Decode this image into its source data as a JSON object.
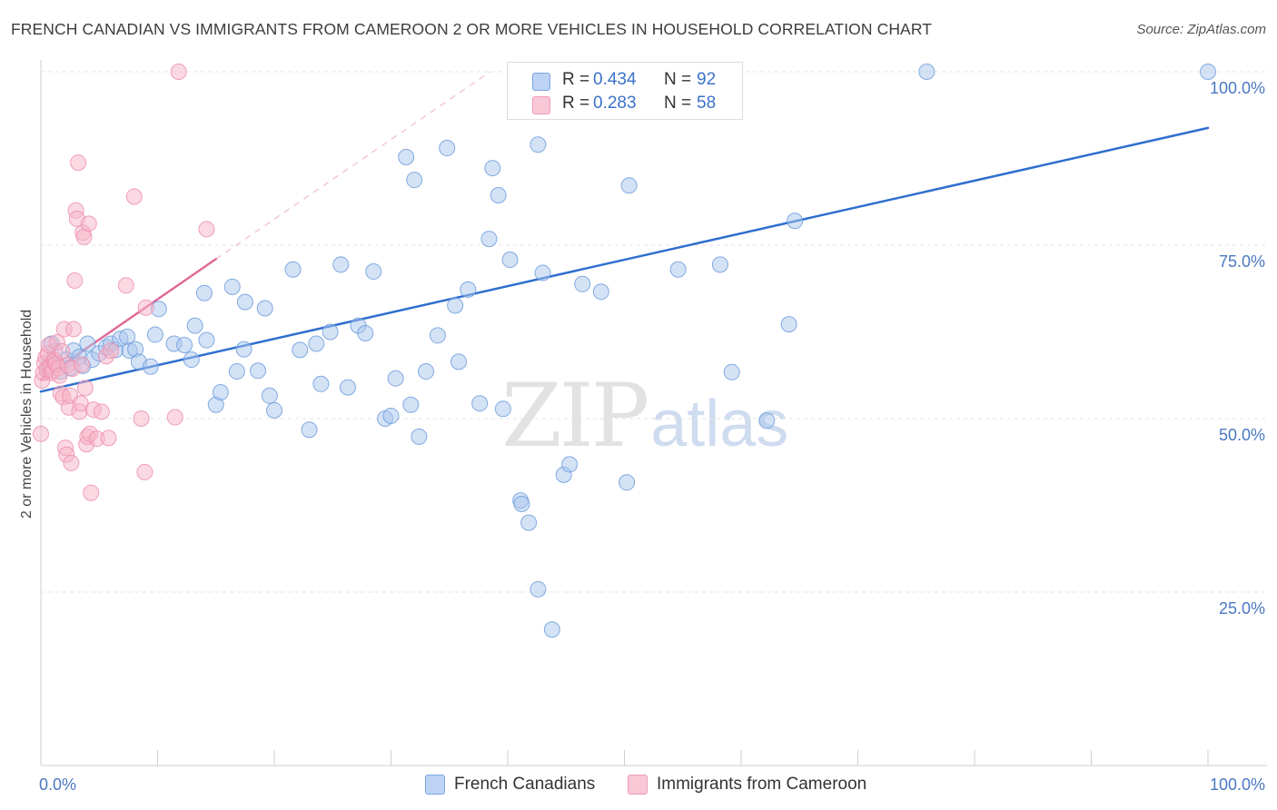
{
  "header": {
    "title": "FRENCH CANADIAN VS IMMIGRANTS FROM CAMEROON 2 OR MORE VEHICLES IN HOUSEHOLD CORRELATION CHART",
    "source": "Source: ZipAtlas.com"
  },
  "watermark": {
    "zip": "ZIP",
    "atlas": "atlas"
  },
  "legend": {
    "rows": [
      {
        "r_label": "R =",
        "r_value": "0.434",
        "n_label": "N =",
        "n_value": "92",
        "color": "#a9c5ee"
      },
      {
        "r_label": "R =",
        "r_value": "0.283",
        "n_label": "N =",
        "n_value": "58",
        "color": "#f6b4c8"
      }
    ]
  },
  "bottom_legend": {
    "french": "French Canadians",
    "cameroon": "Immigrants from Cameroon"
  },
  "chart_data": {
    "type": "scatter",
    "title": "FRENCH CANADIAN VS IMMIGRANTS FROM CAMEROON 2 OR MORE VEHICLES IN HOUSEHOLD CORRELATION CHART",
    "xlabel": "",
    "ylabel": "2 or more Vehicles in Household",
    "x_tick_labels": [
      "0.0%",
      "100.0%"
    ],
    "y_tick_labels": [
      "25.0%",
      "50.0%",
      "75.0%",
      "100.0%"
    ],
    "xlim": [
      0,
      100
    ],
    "ylim": [
      0,
      100
    ],
    "grid": true,
    "legend_position": "top-center",
    "series": [
      {
        "name": "French Canadians",
        "color": "#a9c5ee",
        "edge_color": "#6e9edc",
        "trend": {
          "x": [
            0,
            100
          ],
          "y": [
            53.9,
            91.9
          ],
          "color": "#2f6fcf"
        },
        "points": [
          [
            0.6,
            57.3
          ],
          [
            0.8,
            58.2
          ],
          [
            0.9,
            60.8
          ],
          [
            1.2,
            59.7
          ],
          [
            1.4,
            57.9
          ],
          [
            1.7,
            56.8
          ],
          [
            2.2,
            58.5
          ],
          [
            2.5,
            57.3
          ],
          [
            2.8,
            59.8
          ],
          [
            3.3,
            58.9
          ],
          [
            3.6,
            57.6
          ],
          [
            4.0,
            60.8
          ],
          [
            4.4,
            58.5
          ],
          [
            5.0,
            59.4
          ],
          [
            5.6,
            60.3
          ],
          [
            6.0,
            60.8
          ],
          [
            6.4,
            59.9
          ],
          [
            6.8,
            61.5
          ],
          [
            7.4,
            61.8
          ],
          [
            7.6,
            59.8
          ],
          [
            8.1,
            60.0
          ],
          [
            8.4,
            58.2
          ],
          [
            9.4,
            57.5
          ],
          [
            9.8,
            62.1
          ],
          [
            10.1,
            65.8
          ],
          [
            11.4,
            60.8
          ],
          [
            12.3,
            60.6
          ],
          [
            12.9,
            58.5
          ],
          [
            13.2,
            63.4
          ],
          [
            14.0,
            68.1
          ],
          [
            14.2,
            61.3
          ],
          [
            15.0,
            52.0
          ],
          [
            15.4,
            53.8
          ],
          [
            16.4,
            69.0
          ],
          [
            16.8,
            56.8
          ],
          [
            17.4,
            60.0
          ],
          [
            17.5,
            66.8
          ],
          [
            18.6,
            56.9
          ],
          [
            19.2,
            65.9
          ],
          [
            19.6,
            53.3
          ],
          [
            20.0,
            51.2
          ],
          [
            21.6,
            71.5
          ],
          [
            22.2,
            59.9
          ],
          [
            23.0,
            48.4
          ],
          [
            23.6,
            60.8
          ],
          [
            24.0,
            55.0
          ],
          [
            24.8,
            62.5
          ],
          [
            25.7,
            72.2
          ],
          [
            26.3,
            54.5
          ],
          [
            27.2,
            63.4
          ],
          [
            27.8,
            62.3
          ],
          [
            28.5,
            71.2
          ],
          [
            29.5,
            50.0
          ],
          [
            30.0,
            50.4
          ],
          [
            30.4,
            55.8
          ],
          [
            31.3,
            87.7
          ],
          [
            31.7,
            52.0
          ],
          [
            32.0,
            84.4
          ],
          [
            32.4,
            47.4
          ],
          [
            33.0,
            56.8
          ],
          [
            34.0,
            62.0
          ],
          [
            34.8,
            89.0
          ],
          [
            35.5,
            66.3
          ],
          [
            35.8,
            58.2
          ],
          [
            36.6,
            68.6
          ],
          [
            37.6,
            52.2
          ],
          [
            38.4,
            75.9
          ],
          [
            38.7,
            86.1
          ],
          [
            39.2,
            82.2
          ],
          [
            39.6,
            51.4
          ],
          [
            40.2,
            72.9
          ],
          [
            41.1,
            38.2
          ],
          [
            41.2,
            37.7
          ],
          [
            41.8,
            35.0
          ],
          [
            42.6,
            89.5
          ],
          [
            42.6,
            25.4
          ],
          [
            43.0,
            71.0
          ],
          [
            43.8,
            19.6
          ],
          [
            44.8,
            41.9
          ],
          [
            45.3,
            43.4
          ],
          [
            46.4,
            69.4
          ],
          [
            48.0,
            68.3
          ],
          [
            50.2,
            40.8
          ],
          [
            50.4,
            83.6
          ],
          [
            54.6,
            71.5
          ],
          [
            58.2,
            72.2
          ],
          [
            59.2,
            56.7
          ],
          [
            62.2,
            49.7
          ],
          [
            64.1,
            63.6
          ],
          [
            64.6,
            78.5
          ],
          [
            75.9,
            100.0
          ],
          [
            100.0,
            100.0
          ]
        ]
      },
      {
        "name": "Immigrants from Cameroon",
        "color": "#f6b4c8",
        "edge_color": "#ee8fae",
        "trend": {
          "x": [
            0,
            15
          ],
          "y": [
            55.6,
            73.0
          ],
          "color": "#e06a97",
          "dashed_extension_to": [
            38.5,
            100
          ]
        },
        "points": [
          [
            0.0,
            47.8
          ],
          [
            0.1,
            55.5
          ],
          [
            0.2,
            56.6
          ],
          [
            0.3,
            58.0
          ],
          [
            0.4,
            58.8
          ],
          [
            0.5,
            57.1
          ],
          [
            0.6,
            59.4
          ],
          [
            0.7,
            60.6
          ],
          [
            0.8,
            57.5
          ],
          [
            0.9,
            56.6
          ],
          [
            1.0,
            56.9
          ],
          [
            1.1,
            58.2
          ],
          [
            1.2,
            58.4
          ],
          [
            1.3,
            57.9
          ],
          [
            1.4,
            61.0
          ],
          [
            1.5,
            57.3
          ],
          [
            1.6,
            56.2
          ],
          [
            1.7,
            53.6
          ],
          [
            1.8,
            59.7
          ],
          [
            1.9,
            53.1
          ],
          [
            2.0,
            62.9
          ],
          [
            2.1,
            45.8
          ],
          [
            2.2,
            44.8
          ],
          [
            2.3,
            57.7
          ],
          [
            2.4,
            51.6
          ],
          [
            2.5,
            53.3
          ],
          [
            2.6,
            43.6
          ],
          [
            2.7,
            57.2
          ],
          [
            2.8,
            62.9
          ],
          [
            2.9,
            69.9
          ],
          [
            3.0,
            80.0
          ],
          [
            3.1,
            78.8
          ],
          [
            3.2,
            86.9
          ],
          [
            3.3,
            51.0
          ],
          [
            3.4,
            52.2
          ],
          [
            3.5,
            57.8
          ],
          [
            3.6,
            76.8
          ],
          [
            3.7,
            76.2
          ],
          [
            3.8,
            54.4
          ],
          [
            3.9,
            46.3
          ],
          [
            4.0,
            47.4
          ],
          [
            4.1,
            78.1
          ],
          [
            4.2,
            47.8
          ],
          [
            4.3,
            39.3
          ],
          [
            4.5,
            51.3
          ],
          [
            4.8,
            47.1
          ],
          [
            5.2,
            51.0
          ],
          [
            5.6,
            59.0
          ],
          [
            5.8,
            47.2
          ],
          [
            6.0,
            59.8
          ],
          [
            7.3,
            69.2
          ],
          [
            8.0,
            82.0
          ],
          [
            8.6,
            50.0
          ],
          [
            8.9,
            42.3
          ],
          [
            9.0,
            66.0
          ],
          [
            11.5,
            50.2
          ],
          [
            14.2,
            77.3
          ],
          [
            11.8,
            100.0
          ]
        ]
      }
    ]
  }
}
